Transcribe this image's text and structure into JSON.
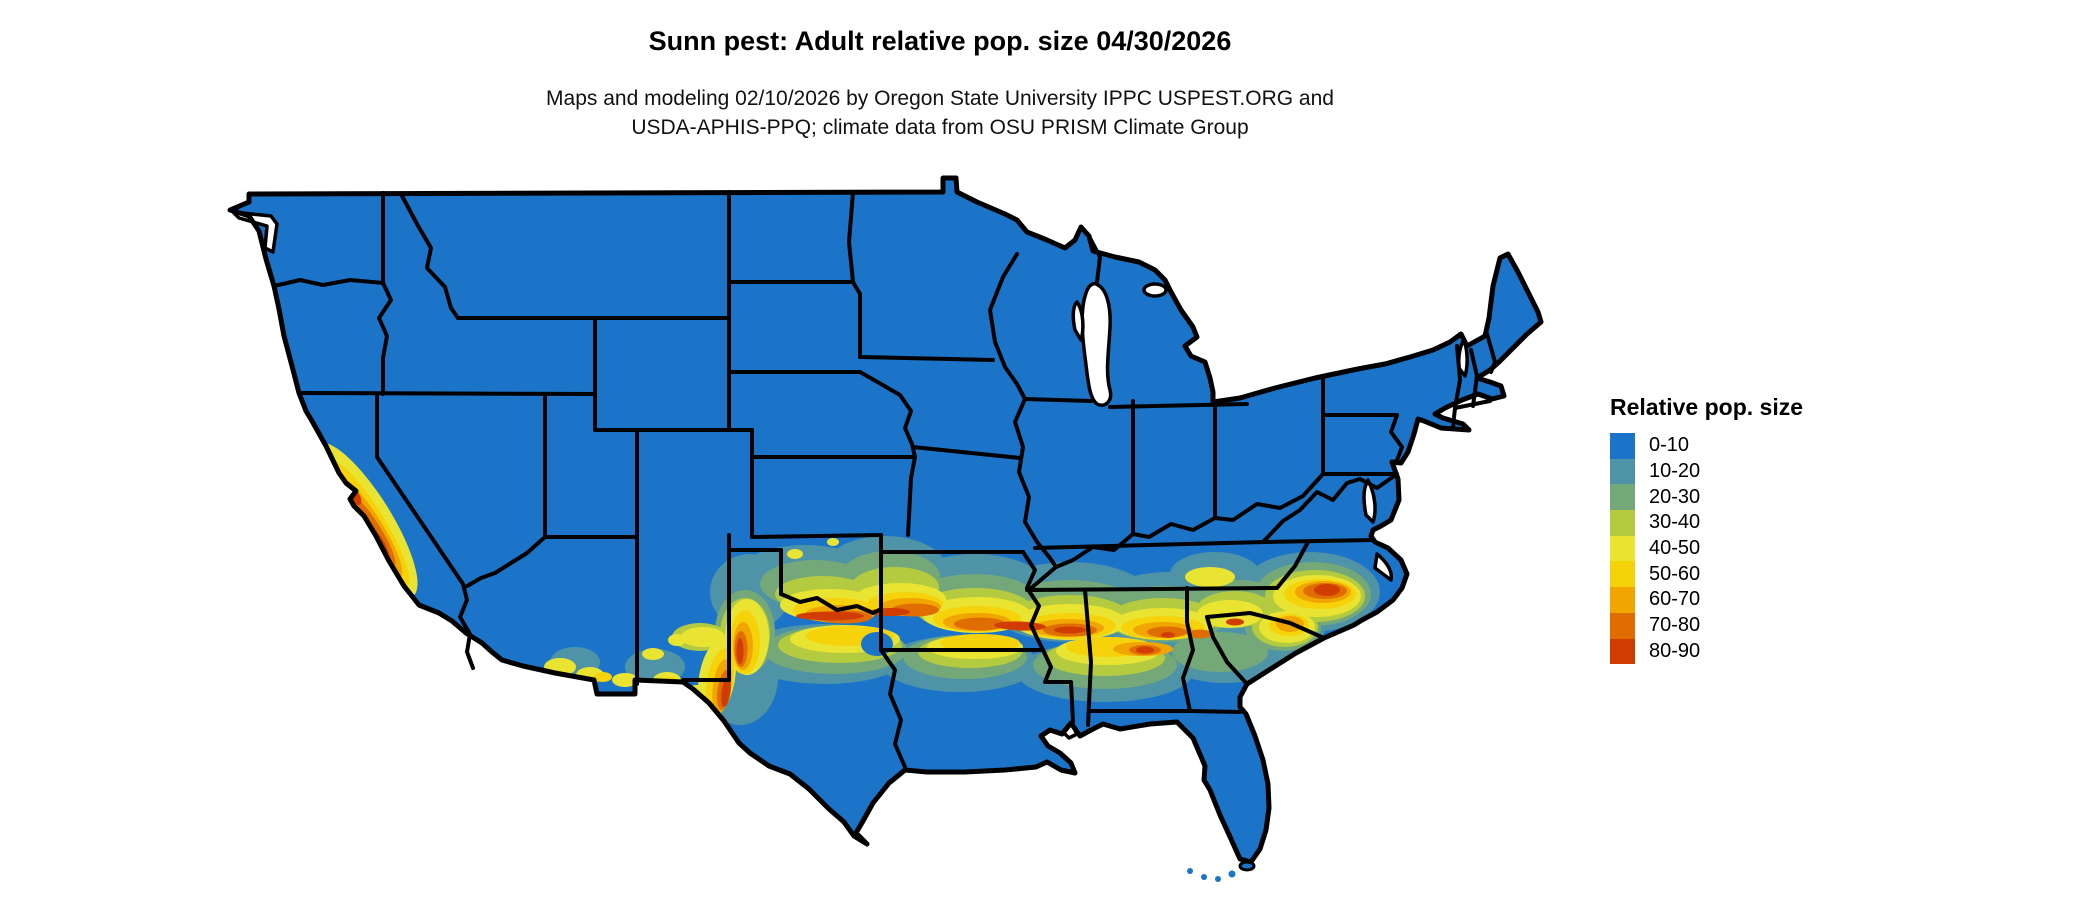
{
  "title": "Sunn pest: Adult relative pop. size 04/30/2026",
  "subtitle_line1": "Maps and modeling 02/10/2026 by Oregon State University IPPC USPEST.ORG and",
  "subtitle_line2": "USDA-APHIS-PPQ; climate data from OSU PRISM Climate Group",
  "legend": {
    "title": "Relative pop. size",
    "items": [
      {
        "range": "0-10",
        "color": "#1B74C8"
      },
      {
        "range": "10-20",
        "color": "#4E94A6"
      },
      {
        "range": "20-30",
        "color": "#74A878"
      },
      {
        "range": "30-40",
        "color": "#B4CB3F"
      },
      {
        "range": "40-50",
        "color": "#E9E431"
      },
      {
        "range": "50-60",
        "color": "#F6D20B"
      },
      {
        "range": "60-70",
        "color": "#F0A500"
      },
      {
        "range": "70-80",
        "color": "#E06D00"
      },
      {
        "range": "80-90",
        "color": "#D13C00"
      }
    ]
  },
  "map": {
    "region": "Continental United States",
    "background_color": "#FFFFFF",
    "land_base_color": "#1B74C8",
    "border_color": "#000000",
    "water_color": "#FFFFFF",
    "base_class": "0-10",
    "high_population_regions": [
      "California Central Valley",
      "Southern California coast and deserts",
      "Southern Arizona and New Mexico patches",
      "West Texas Trans-Pecos",
      "Red River valley along Texas-Oklahoma border",
      "Band across Arkansas, Mississippi, Alabama, Georgia",
      "Central South Carolina",
      "Eastern North Carolina near coast"
    ]
  }
}
